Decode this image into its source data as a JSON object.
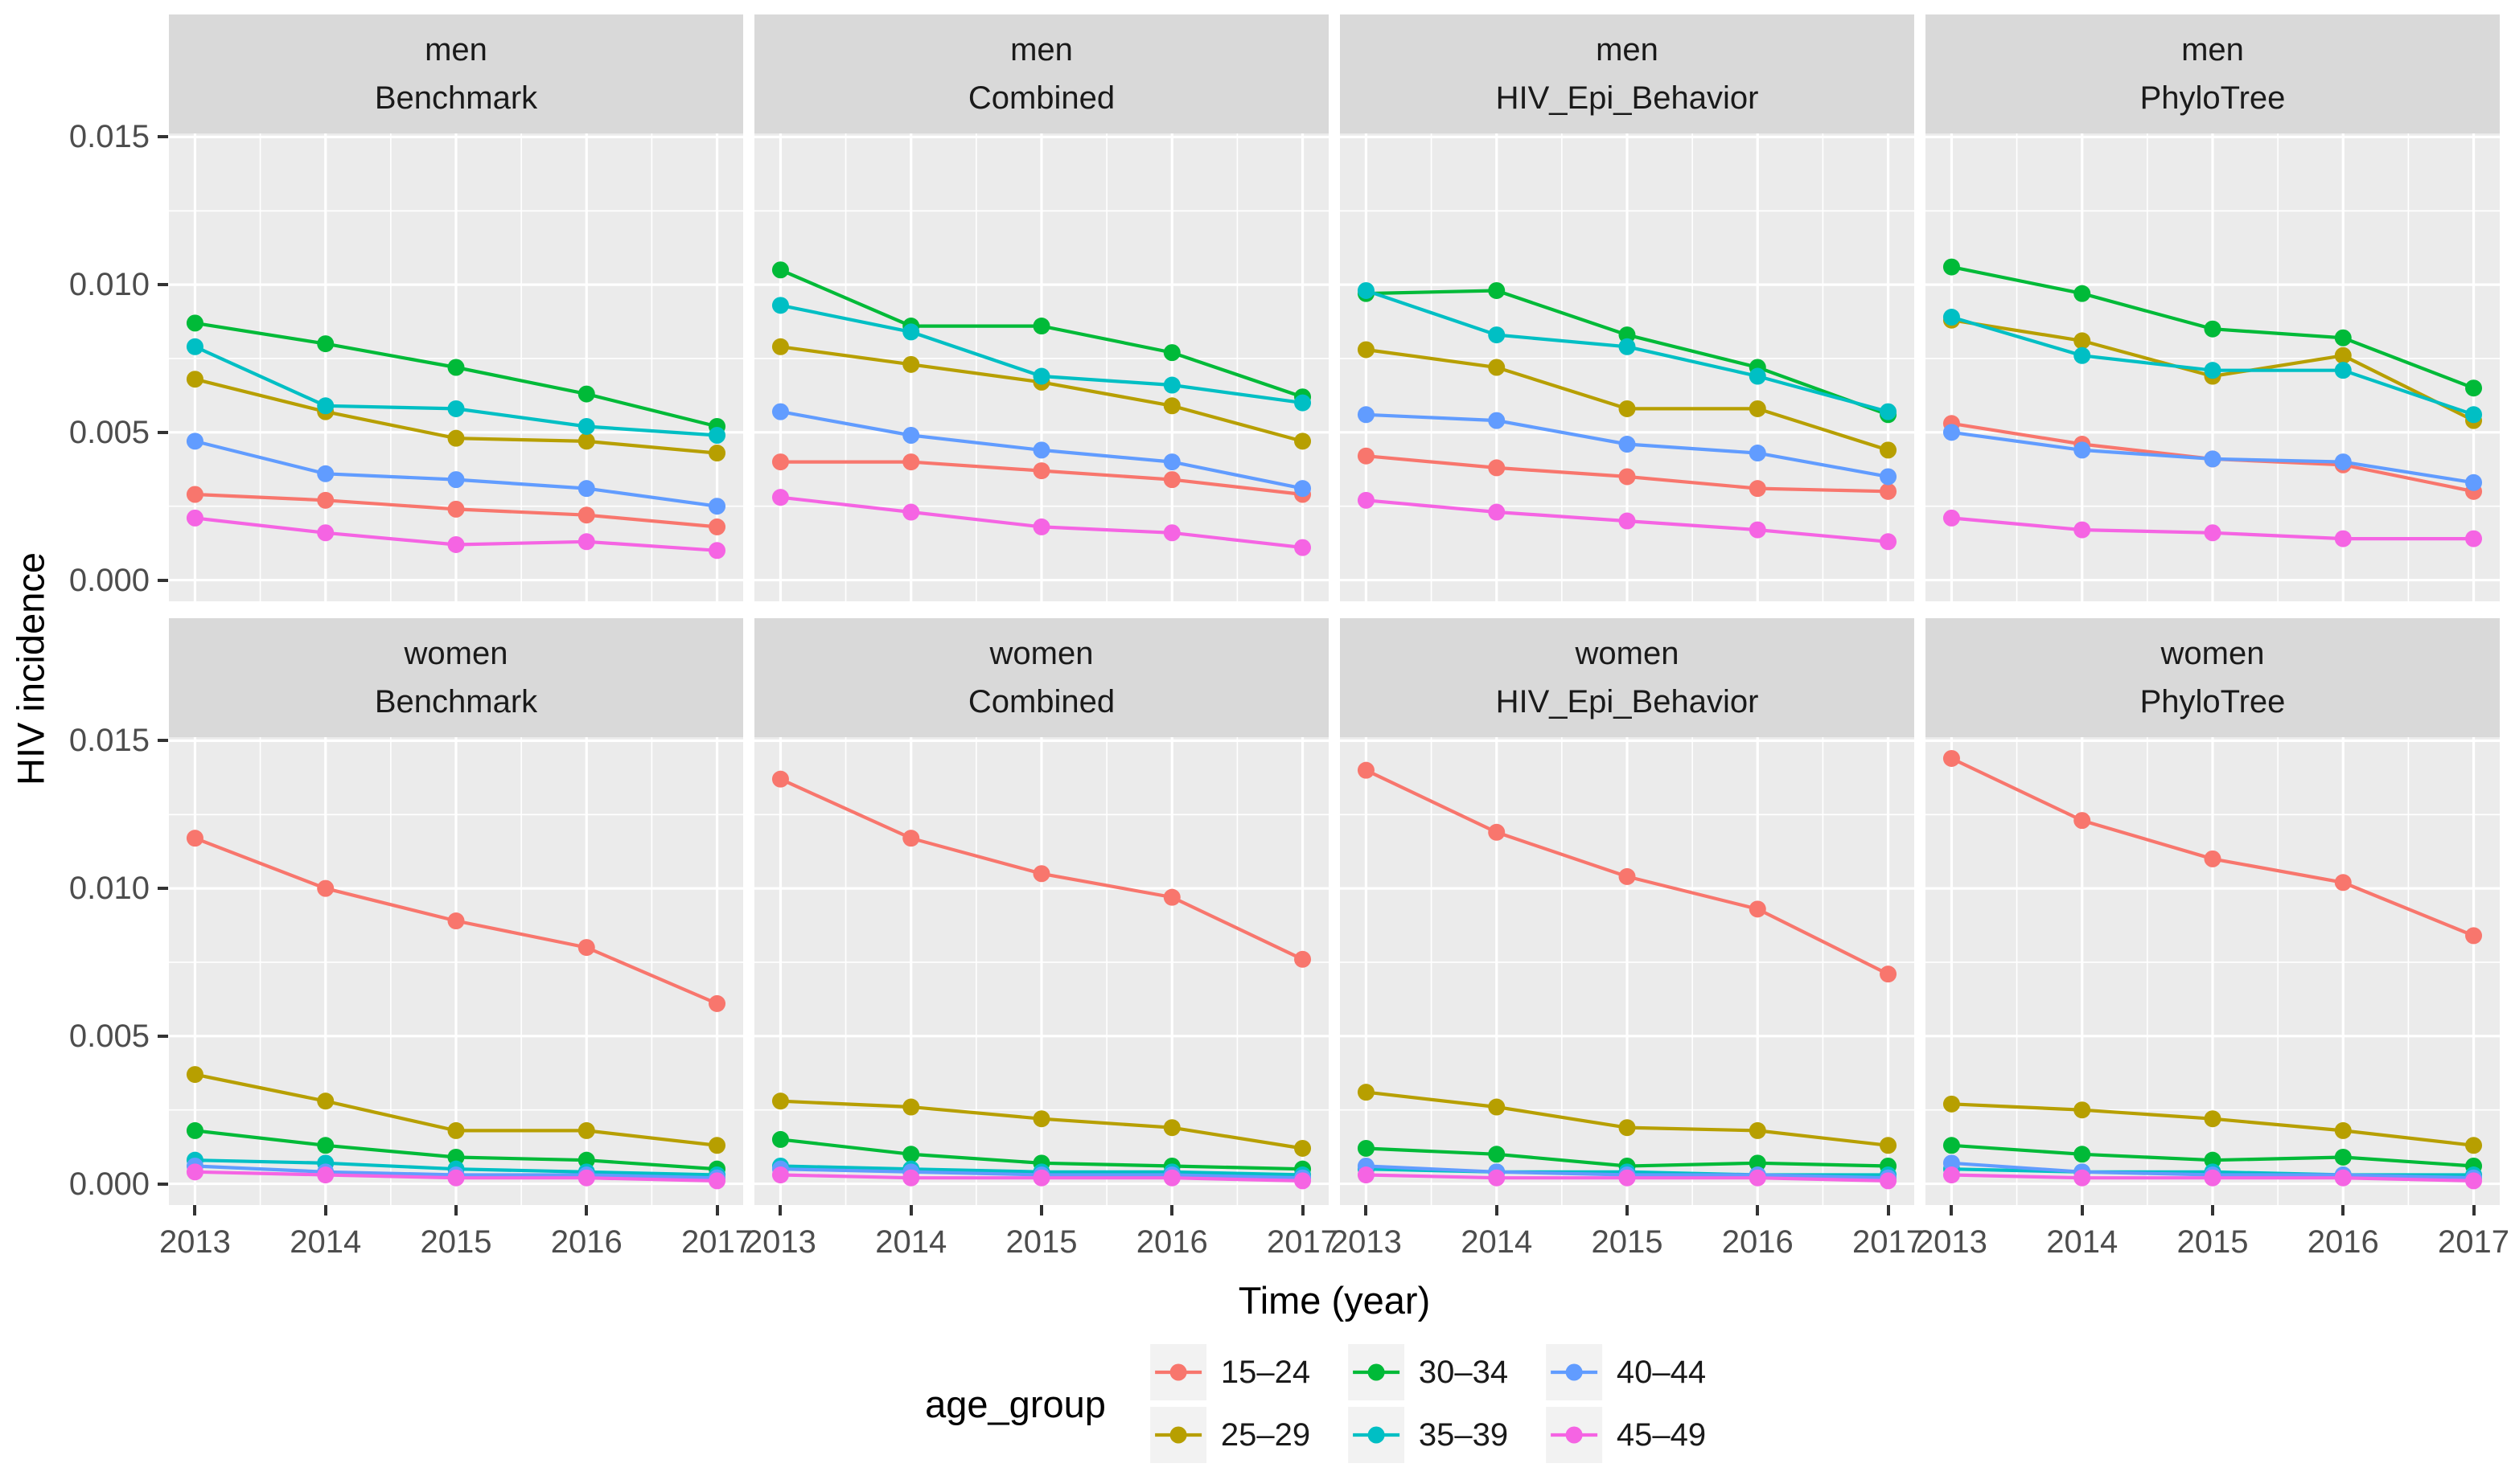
{
  "y_axis": {
    "title": "HIV incidence",
    "tick_labels": [
      "0.015",
      "0.010",
      "0.005",
      "0.000"
    ],
    "tick_values": [
      0.015,
      0.01,
      0.005,
      0.0
    ]
  },
  "x_axis": {
    "title": "Time (year)",
    "tick_labels": [
      "2013",
      "2014",
      "2015",
      "2016",
      "2017"
    ]
  },
  "facet_rows": [
    "men",
    "women"
  ],
  "facet_cols": [
    "Benchmark",
    "Combined",
    "HIV_Epi_Behavior",
    "PhyloTree"
  ],
  "legend": {
    "title": "age_group",
    "entries": [
      {
        "label": "15–24",
        "color": "#F8766D"
      },
      {
        "label": "25–29",
        "color": "#B79F00"
      },
      {
        "label": "30–34",
        "color": "#00BA38"
      },
      {
        "label": "35–39",
        "color": "#00BFC4"
      },
      {
        "label": "40–44",
        "color": "#619CFF"
      },
      {
        "label": "45–49",
        "color": "#F564E3"
      }
    ]
  },
  "chart_data": {
    "type": "line",
    "x": [
      2013,
      2014,
      2015,
      2016,
      2017
    ],
    "xlabel": "Time (year)",
    "ylabel": "HIV incidence",
    "ylim": [
      -0.00072,
      0.01512
    ],
    "y_major_ticks": [
      0,
      0.005,
      0.01,
      0.015
    ],
    "y_minor_ticks": [
      0.0025,
      0.0075,
      0.0125
    ],
    "grid": "white-on-gray",
    "legend_position": "bottom",
    "panels": [
      {
        "row": "men",
        "col": "Benchmark",
        "series": [
          {
            "name": "15–24",
            "color": "#F8766D",
            "values": [
              0.0029,
              0.0027,
              0.0024,
              0.0022,
              0.0018
            ]
          },
          {
            "name": "25–29",
            "color": "#B79F00",
            "values": [
              0.0068,
              0.0057,
              0.0048,
              0.0047,
              0.0043
            ]
          },
          {
            "name": "30–34",
            "color": "#00BA38",
            "values": [
              0.0087,
              0.008,
              0.0072,
              0.0063,
              0.0052
            ]
          },
          {
            "name": "35–39",
            "color": "#00BFC4",
            "values": [
              0.0079,
              0.0059,
              0.0058,
              0.0052,
              0.0049
            ]
          },
          {
            "name": "40–44",
            "color": "#619CFF",
            "values": [
              0.0047,
              0.0036,
              0.0034,
              0.0031,
              0.0025
            ]
          },
          {
            "name": "45–49",
            "color": "#F564E3",
            "values": [
              0.0021,
              0.0016,
              0.0012,
              0.0013,
              0.001
            ]
          }
        ]
      },
      {
        "row": "men",
        "col": "Combined",
        "series": [
          {
            "name": "15–24",
            "color": "#F8766D",
            "values": [
              0.004,
              0.004,
              0.0037,
              0.0034,
              0.0029
            ]
          },
          {
            "name": "25–29",
            "color": "#B79F00",
            "values": [
              0.0079,
              0.0073,
              0.0067,
              0.0059,
              0.0047
            ]
          },
          {
            "name": "30–34",
            "color": "#00BA38",
            "values": [
              0.0105,
              0.0086,
              0.0086,
              0.0077,
              0.0062
            ]
          },
          {
            "name": "35–39",
            "color": "#00BFC4",
            "values": [
              0.0093,
              0.0084,
              0.0069,
              0.0066,
              0.006
            ]
          },
          {
            "name": "40–44",
            "color": "#619CFF",
            "values": [
              0.0057,
              0.0049,
              0.0044,
              0.004,
              0.0031
            ]
          },
          {
            "name": "45–49",
            "color": "#F564E3",
            "values": [
              0.0028,
              0.0023,
              0.0018,
              0.0016,
              0.0011
            ]
          }
        ]
      },
      {
        "row": "men",
        "col": "HIV_Epi_Behavior",
        "series": [
          {
            "name": "15–24",
            "color": "#F8766D",
            "values": [
              0.0042,
              0.0038,
              0.0035,
              0.0031,
              0.003
            ]
          },
          {
            "name": "25–29",
            "color": "#B79F00",
            "values": [
              0.0078,
              0.0072,
              0.0058,
              0.0058,
              0.0044
            ]
          },
          {
            "name": "30–34",
            "color": "#00BA38",
            "values": [
              0.0097,
              0.0098,
              0.0083,
              0.0072,
              0.0056
            ]
          },
          {
            "name": "35–39",
            "color": "#00BFC4",
            "values": [
              0.0098,
              0.0083,
              0.0079,
              0.0069,
              0.0057
            ]
          },
          {
            "name": "40–44",
            "color": "#619CFF",
            "values": [
              0.0056,
              0.0054,
              0.0046,
              0.0043,
              0.0035
            ]
          },
          {
            "name": "45–49",
            "color": "#F564E3",
            "values": [
              0.0027,
              0.0023,
              0.002,
              0.0017,
              0.0013
            ]
          }
        ]
      },
      {
        "row": "men",
        "col": "PhyloTree",
        "series": [
          {
            "name": "15–24",
            "color": "#F8766D",
            "values": [
              0.0053,
              0.0046,
              0.0041,
              0.0039,
              0.003
            ]
          },
          {
            "name": "25–29",
            "color": "#B79F00",
            "values": [
              0.0088,
              0.0081,
              0.0069,
              0.0076,
              0.0054
            ]
          },
          {
            "name": "30–34",
            "color": "#00BA38",
            "values": [
              0.0106,
              0.0097,
              0.0085,
              0.0082,
              0.0065
            ]
          },
          {
            "name": "35–39",
            "color": "#00BFC4",
            "values": [
              0.0089,
              0.0076,
              0.0071,
              0.0071,
              0.0056
            ]
          },
          {
            "name": "40–44",
            "color": "#619CFF",
            "values": [
              0.005,
              0.0044,
              0.0041,
              0.004,
              0.0033
            ]
          },
          {
            "name": "45–49",
            "color": "#F564E3",
            "values": [
              0.0021,
              0.0017,
              0.0016,
              0.0014,
              0.0014
            ]
          }
        ]
      },
      {
        "row": "women",
        "col": "Benchmark",
        "series": [
          {
            "name": "15–24",
            "color": "#F8766D",
            "values": [
              0.0117,
              0.01,
              0.0089,
              0.008,
              0.0061
            ]
          },
          {
            "name": "25–29",
            "color": "#B79F00",
            "values": [
              0.0037,
              0.0028,
              0.0018,
              0.0018,
              0.0013
            ]
          },
          {
            "name": "30–34",
            "color": "#00BA38",
            "values": [
              0.0018,
              0.0013,
              0.0009,
              0.0008,
              0.0005
            ]
          },
          {
            "name": "35–39",
            "color": "#00BFC4",
            "values": [
              0.0008,
              0.0007,
              0.0005,
              0.0004,
              0.0003
            ]
          },
          {
            "name": "40–44",
            "color": "#619CFF",
            "values": [
              0.0006,
              0.0004,
              0.0003,
              0.0003,
              0.0002
            ]
          },
          {
            "name": "45–49",
            "color": "#F564E3",
            "values": [
              0.0004,
              0.0003,
              0.0002,
              0.0002,
              0.0001
            ]
          }
        ]
      },
      {
        "row": "women",
        "col": "Combined",
        "series": [
          {
            "name": "15–24",
            "color": "#F8766D",
            "values": [
              0.0137,
              0.0117,
              0.0105,
              0.0097,
              0.0076
            ]
          },
          {
            "name": "25–29",
            "color": "#B79F00",
            "values": [
              0.0028,
              0.0026,
              0.0022,
              0.0019,
              0.0012
            ]
          },
          {
            "name": "30–34",
            "color": "#00BA38",
            "values": [
              0.0015,
              0.001,
              0.0007,
              0.0006,
              0.0005
            ]
          },
          {
            "name": "35–39",
            "color": "#00BFC4",
            "values": [
              0.0006,
              0.0005,
              0.0004,
              0.0004,
              0.0003
            ]
          },
          {
            "name": "40–44",
            "color": "#619CFF",
            "values": [
              0.0005,
              0.0004,
              0.0003,
              0.0003,
              0.0002
            ]
          },
          {
            "name": "45–49",
            "color": "#F564E3",
            "values": [
              0.0003,
              0.0002,
              0.0002,
              0.0002,
              0.0001
            ]
          }
        ]
      },
      {
        "row": "women",
        "col": "HIV_Epi_Behavior",
        "series": [
          {
            "name": "15–24",
            "color": "#F8766D",
            "values": [
              0.014,
              0.0119,
              0.0104,
              0.0093,
              0.0071
            ]
          },
          {
            "name": "25–29",
            "color": "#B79F00",
            "values": [
              0.0031,
              0.0026,
              0.0019,
              0.0018,
              0.0013
            ]
          },
          {
            "name": "30–34",
            "color": "#00BA38",
            "values": [
              0.0012,
              0.001,
              0.0006,
              0.0007,
              0.0006
            ]
          },
          {
            "name": "35–39",
            "color": "#00BFC4",
            "values": [
              0.0005,
              0.0004,
              0.0004,
              0.0003,
              0.0003
            ]
          },
          {
            "name": "40–44",
            "color": "#619CFF",
            "values": [
              0.0006,
              0.0004,
              0.0003,
              0.0003,
              0.0002
            ]
          },
          {
            "name": "45–49",
            "color": "#F564E3",
            "values": [
              0.0003,
              0.0002,
              0.0002,
              0.0002,
              0.0001
            ]
          }
        ]
      },
      {
        "row": "women",
        "col": "PhyloTree",
        "series": [
          {
            "name": "15–24",
            "color": "#F8766D",
            "values": [
              0.0144,
              0.0123,
              0.011,
              0.0102,
              0.0084
            ]
          },
          {
            "name": "25–29",
            "color": "#B79F00",
            "values": [
              0.0027,
              0.0025,
              0.0022,
              0.0018,
              0.0013
            ]
          },
          {
            "name": "30–34",
            "color": "#00BA38",
            "values": [
              0.0013,
              0.001,
              0.0008,
              0.0009,
              0.0006
            ]
          },
          {
            "name": "35–39",
            "color": "#00BFC4",
            "values": [
              0.0005,
              0.0004,
              0.0004,
              0.0003,
              0.0003
            ]
          },
          {
            "name": "40–44",
            "color": "#619CFF",
            "values": [
              0.0007,
              0.0004,
              0.0003,
              0.0003,
              0.0002
            ]
          },
          {
            "name": "45–49",
            "color": "#F564E3",
            "values": [
              0.0003,
              0.0002,
              0.0002,
              0.0002,
              0.0001
            ]
          }
        ]
      }
    ]
  },
  "style_colors": {
    "panel_background": "#EBEBEB",
    "strip_background": "#D9D9D9",
    "gridline": "#FFFFFF",
    "axis_text": "#4D4D4D",
    "tick_mark": "#333333",
    "legend_key_background": "#F2F2F2"
  }
}
